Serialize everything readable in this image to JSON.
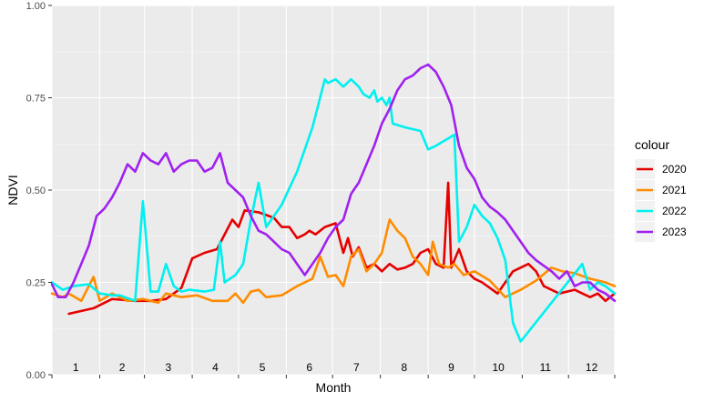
{
  "chart_data": {
    "type": "line",
    "title": "",
    "xlabel": "Month",
    "ylabel": "NDVI",
    "ylim": [
      0,
      1
    ],
    "xlim": [
      1,
      366
    ],
    "y_ticks": [
      "0.00",
      "0.25",
      "0.50",
      "0.75",
      "1.00"
    ],
    "y_tick_values": [
      0,
      0.25,
      0.5,
      0.75,
      1.0
    ],
    "month_labels": [
      "1",
      "2",
      "3",
      "4",
      "5",
      "6",
      "7",
      "8",
      "9",
      "10",
      "11",
      "12"
    ],
    "grid": true,
    "legend_title": "colour",
    "legend_position": "right",
    "series": [
      {
        "name": "2020",
        "color": "#e60000",
        "points": [
          [
            12,
            0.165
          ],
          [
            28,
            0.18
          ],
          [
            40,
            0.205
          ],
          [
            55,
            0.2
          ],
          [
            65,
            0.2
          ],
          [
            75,
            0.205
          ],
          [
            85,
            0.235
          ],
          [
            92,
            0.315
          ],
          [
            100,
            0.33
          ],
          [
            108,
            0.34
          ],
          [
            118,
            0.42
          ],
          [
            122,
            0.4
          ],
          [
            126,
            0.445
          ],
          [
            135,
            0.44
          ],
          [
            145,
            0.425
          ],
          [
            150,
            0.4
          ],
          [
            155,
            0.4
          ],
          [
            160,
            0.37
          ],
          [
            165,
            0.38
          ],
          [
            168,
            0.39
          ],
          [
            172,
            0.38
          ],
          [
            178,
            0.4
          ],
          [
            185,
            0.41
          ],
          [
            190,
            0.33
          ],
          [
            193,
            0.37
          ],
          [
            196,
            0.32
          ],
          [
            200,
            0.345
          ],
          [
            205,
            0.29
          ],
          [
            210,
            0.3
          ],
          [
            215,
            0.28
          ],
          [
            220,
            0.3
          ],
          [
            225,
            0.285
          ],
          [
            230,
            0.29
          ],
          [
            235,
            0.3
          ],
          [
            240,
            0.33
          ],
          [
            245,
            0.34
          ],
          [
            250,
            0.3
          ],
          [
            255,
            0.29
          ],
          [
            258,
            0.52
          ],
          [
            260,
            0.29
          ],
          [
            265,
            0.34
          ],
          [
            270,
            0.28
          ],
          [
            275,
            0.26
          ],
          [
            280,
            0.25
          ],
          [
            290,
            0.22
          ],
          [
            300,
            0.28
          ],
          [
            310,
            0.3
          ],
          [
            315,
            0.28
          ],
          [
            320,
            0.24
          ],
          [
            330,
            0.22
          ],
          [
            340,
            0.23
          ],
          [
            350,
            0.21
          ],
          [
            355,
            0.22
          ],
          [
            360,
            0.2
          ],
          [
            366,
            0.22
          ]
        ]
      },
      {
        "name": "2021",
        "color": "#ff8c00",
        "points": [
          [
            1,
            0.22
          ],
          [
            8,
            0.21
          ],
          [
            12,
            0.22
          ],
          [
            20,
            0.2
          ],
          [
            28,
            0.265
          ],
          [
            32,
            0.2
          ],
          [
            40,
            0.22
          ],
          [
            50,
            0.2
          ],
          [
            60,
            0.205
          ],
          [
            70,
            0.195
          ],
          [
            75,
            0.22
          ],
          [
            85,
            0.21
          ],
          [
            95,
            0.215
          ],
          [
            105,
            0.2
          ],
          [
            115,
            0.2
          ],
          [
            120,
            0.22
          ],
          [
            125,
            0.195
          ],
          [
            130,
            0.225
          ],
          [
            135,
            0.23
          ],
          [
            140,
            0.21
          ],
          [
            150,
            0.215
          ],
          [
            160,
            0.24
          ],
          [
            170,
            0.26
          ],
          [
            175,
            0.32
          ],
          [
            180,
            0.265
          ],
          [
            185,
            0.27
          ],
          [
            190,
            0.24
          ],
          [
            195,
            0.32
          ],
          [
            200,
            0.34
          ],
          [
            205,
            0.28
          ],
          [
            210,
            0.3
          ],
          [
            215,
            0.33
          ],
          [
            220,
            0.42
          ],
          [
            225,
            0.39
          ],
          [
            230,
            0.37
          ],
          [
            235,
            0.32
          ],
          [
            240,
            0.3
          ],
          [
            245,
            0.27
          ],
          [
            248,
            0.36
          ],
          [
            252,
            0.3
          ],
          [
            258,
            0.29
          ],
          [
            262,
            0.3
          ],
          [
            268,
            0.27
          ],
          [
            275,
            0.28
          ],
          [
            285,
            0.255
          ],
          [
            295,
            0.21
          ],
          [
            305,
            0.23
          ],
          [
            315,
            0.255
          ],
          [
            325,
            0.29
          ],
          [
            332,
            0.28
          ],
          [
            340,
            0.275
          ],
          [
            350,
            0.26
          ],
          [
            360,
            0.25
          ],
          [
            366,
            0.24
          ]
        ]
      },
      {
        "name": "2022",
        "color": "#00f0f0",
        "points": [
          [
            1,
            0.25
          ],
          [
            8,
            0.23
          ],
          [
            15,
            0.24
          ],
          [
            25,
            0.245
          ],
          [
            32,
            0.22
          ],
          [
            40,
            0.215
          ],
          [
            45,
            0.215
          ],
          [
            55,
            0.2
          ],
          [
            60,
            0.47
          ],
          [
            65,
            0.225
          ],
          [
            70,
            0.225
          ],
          [
            75,
            0.3
          ],
          [
            80,
            0.24
          ],
          [
            85,
            0.225
          ],
          [
            90,
            0.23
          ],
          [
            100,
            0.225
          ],
          [
            106,
            0.23
          ],
          [
            110,
            0.36
          ],
          [
            113,
            0.25
          ],
          [
            120,
            0.27
          ],
          [
            125,
            0.3
          ],
          [
            130,
            0.42
          ],
          [
            135,
            0.52
          ],
          [
            140,
            0.4
          ],
          [
            150,
            0.46
          ],
          [
            160,
            0.55
          ],
          [
            170,
            0.67
          ],
          [
            178,
            0.8
          ],
          [
            180,
            0.79
          ],
          [
            185,
            0.8
          ],
          [
            190,
            0.78
          ],
          [
            195,
            0.8
          ],
          [
            200,
            0.78
          ],
          [
            203,
            0.76
          ],
          [
            207,
            0.75
          ],
          [
            210,
            0.77
          ],
          [
            212,
            0.74
          ],
          [
            215,
            0.75
          ],
          [
            218,
            0.73
          ],
          [
            220,
            0.75
          ],
          [
            222,
            0.68
          ],
          [
            230,
            0.67
          ],
          [
            240,
            0.66
          ],
          [
            245,
            0.61
          ],
          [
            250,
            0.62
          ],
          [
            258,
            0.64
          ],
          [
            262,
            0.65
          ],
          [
            265,
            0.36
          ],
          [
            270,
            0.4
          ],
          [
            275,
            0.46
          ],
          [
            280,
            0.43
          ],
          [
            285,
            0.41
          ],
          [
            290,
            0.37
          ],
          [
            295,
            0.31
          ],
          [
            300,
            0.14
          ],
          [
            305,
            0.09
          ],
          [
            345,
            0.3
          ],
          [
            350,
            0.23
          ],
          [
            355,
            0.25
          ],
          [
            360,
            0.24
          ],
          [
            366,
            0.22
          ]
        ]
      },
      {
        "name": "2023",
        "color": "#a020f0",
        "points": [
          [
            1,
            0.245
          ],
          [
            5,
            0.21
          ],
          [
            10,
            0.21
          ],
          [
            15,
            0.25
          ],
          [
            20,
            0.3
          ],
          [
            25,
            0.35
          ],
          [
            30,
            0.43
          ],
          [
            35,
            0.45
          ],
          [
            40,
            0.48
          ],
          [
            45,
            0.52
          ],
          [
            50,
            0.57
          ],
          [
            55,
            0.55
          ],
          [
            60,
            0.6
          ],
          [
            65,
            0.58
          ],
          [
            70,
            0.57
          ],
          [
            75,
            0.6
          ],
          [
            80,
            0.55
          ],
          [
            85,
            0.57
          ],
          [
            90,
            0.58
          ],
          [
            95,
            0.58
          ],
          [
            100,
            0.55
          ],
          [
            105,
            0.56
          ],
          [
            110,
            0.6
          ],
          [
            115,
            0.52
          ],
          [
            120,
            0.5
          ],
          [
            125,
            0.48
          ],
          [
            130,
            0.43
          ],
          [
            135,
            0.39
          ],
          [
            140,
            0.38
          ],
          [
            145,
            0.36
          ],
          [
            150,
            0.34
          ],
          [
            155,
            0.33
          ],
          [
            160,
            0.3
          ],
          [
            165,
            0.27
          ],
          [
            170,
            0.3
          ],
          [
            175,
            0.33
          ],
          [
            180,
            0.37
          ],
          [
            185,
            0.4
          ],
          [
            190,
            0.42
          ],
          [
            195,
            0.49
          ],
          [
            200,
            0.52
          ],
          [
            205,
            0.57
          ],
          [
            210,
            0.62
          ],
          [
            215,
            0.68
          ],
          [
            220,
            0.72
          ],
          [
            225,
            0.77
          ],
          [
            230,
            0.8
          ],
          [
            235,
            0.81
          ],
          [
            240,
            0.83
          ],
          [
            245,
            0.84
          ],
          [
            250,
            0.82
          ],
          [
            255,
            0.78
          ],
          [
            260,
            0.73
          ],
          [
            265,
            0.62
          ],
          [
            270,
            0.56
          ],
          [
            275,
            0.53
          ],
          [
            280,
            0.48
          ],
          [
            285,
            0.455
          ],
          [
            290,
            0.44
          ],
          [
            295,
            0.42
          ],
          [
            300,
            0.39
          ],
          [
            305,
            0.36
          ],
          [
            310,
            0.33
          ],
          [
            315,
            0.31
          ],
          [
            320,
            0.295
          ],
          [
            325,
            0.28
          ],
          [
            330,
            0.26
          ],
          [
            335,
            0.28
          ],
          [
            340,
            0.24
          ],
          [
            345,
            0.25
          ],
          [
            350,
            0.25
          ],
          [
            355,
            0.23
          ],
          [
            360,
            0.22
          ],
          [
            366,
            0.2
          ]
        ]
      }
    ]
  }
}
